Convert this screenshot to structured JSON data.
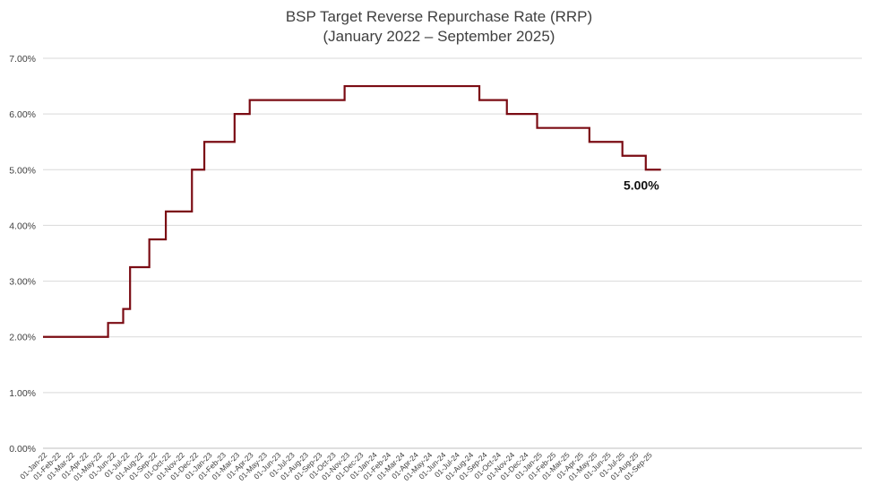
{
  "chart_data": {
    "type": "line",
    "title_line1": "BSP Target Reverse Repurchase Rate (RRP)",
    "title_line2": "(January 2022 – September 2025)",
    "xlabel": "",
    "ylabel": "",
    "ylim": [
      0,
      7
    ],
    "yticks": [
      "0.00%",
      "1.00%",
      "2.00%",
      "3.00%",
      "4.00%",
      "5.00%",
      "6.00%",
      "7.00%"
    ],
    "grid": true,
    "step": true,
    "series_color": "#7B0C14",
    "end_label": "5.00%",
    "categories": [
      "01-Jan-22",
      "01-Feb-22",
      "01-Mar-22",
      "01-Apr-22",
      "01-May-22",
      "01-Jun-22",
      "01-Jul-22",
      "01-Aug-22",
      "01-Sep-22",
      "01-Oct-22",
      "01-Nov-22",
      "01-Dec-22",
      "01-Jan-23",
      "01-Feb-23",
      "01-Mar-23",
      "01-Apr-23",
      "01-May-23",
      "01-Jun-23",
      "01-Jul-23",
      "01-Aug-23",
      "01-Sep-23",
      "01-Oct-23",
      "01-Nov-23",
      "01-Dec-23",
      "01-Jan-24",
      "01-Feb-24",
      "01-Mar-24",
      "01-Apr-24",
      "01-May-24",
      "01-Jun-24",
      "01-Jul-24",
      "01-Aug-24",
      "01-Sep-24",
      "01-Oct-24",
      "01-Nov-24",
      "01-Dec-24",
      "01-Jan-25",
      "01-Feb-25",
      "01-Mar-25",
      "01-Apr-25",
      "01-May-25",
      "01-Jun-25",
      "01-Jul-25",
      "01-Aug-25",
      "01-Sep-25"
    ],
    "x_tick_labels": [
      "01-Jan-22",
      "01-Feb-22",
      "01-Mar-22",
      "01-Apr-22",
      "01-May-22",
      "01-Jun-22",
      "01-Jul-22",
      "01-Aug-22",
      "01-Sep-22",
      "01-Oct-22",
      "01-Nov-22",
      "01-Dec-22",
      "01-Jan-23",
      "01-Feb-23",
      "01-Mar-23",
      "01-Apr-23",
      "01-May-23",
      "01-Jun-23",
      "01-Jul-23",
      "01-Aug-23",
      "01-Sep-23",
      "01-Oct-23",
      "01-Nov-23",
      "01-Dec-23",
      "01-Jan-24",
      "01-Feb-24",
      "01-Mar-24",
      "01-Apr-24",
      "01-May-24",
      "01-Jun-24",
      "01-Jul-24",
      "01-Aug-24",
      "01-Sep-24",
      "01-Oct-24",
      "01-Nov-24",
      "01-Dec-24",
      "01-Jan-25",
      "01-Feb-25",
      "01-Mar-25",
      "01-Apr-25",
      "01-May-25",
      "01-Jun-25",
      "01-Jul-25",
      "01-Aug-25",
      "01-Sep-25"
    ],
    "steps": [
      {
        "month_index": 0,
        "value": 2.0
      },
      {
        "month_index": 4.6,
        "value": 2.25
      },
      {
        "month_index": 5.7,
        "value": 2.5
      },
      {
        "month_index": 6.2,
        "value": 3.25
      },
      {
        "month_index": 7.6,
        "value": 3.75
      },
      {
        "month_index": 8.8,
        "value": 4.25
      },
      {
        "month_index": 10.7,
        "value": 5.0
      },
      {
        "month_index": 11.6,
        "value": 5.5
      },
      {
        "month_index": 13.8,
        "value": 6.0
      },
      {
        "month_index": 14.9,
        "value": 6.25
      },
      {
        "month_index": 21.8,
        "value": 6.5
      },
      {
        "month_index": 31.6,
        "value": 6.25
      },
      {
        "month_index": 33.6,
        "value": 6.0
      },
      {
        "month_index": 35.8,
        "value": 5.75
      },
      {
        "month_index": 39.6,
        "value": 5.5
      },
      {
        "month_index": 42.0,
        "value": 5.25
      },
      {
        "month_index": 43.7,
        "value": 5.0
      }
    ],
    "end_month_index": 44.8
  }
}
